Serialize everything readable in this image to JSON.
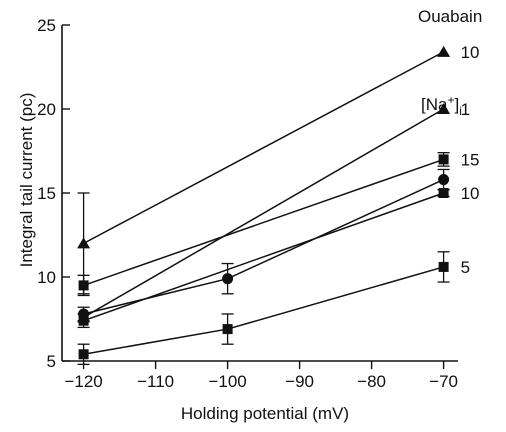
{
  "chart_data": {
    "type": "line",
    "xlabel": "Holding potential (mV)",
    "ylabel": "Integral tail current (pc)",
    "xlim": [
      -123,
      -68
    ],
    "ylim": [
      5,
      25
    ],
    "x_ticks": [
      -120,
      -110,
      -100,
      -90,
      -80,
      -70
    ],
    "y_ticks": [
      5,
      10,
      15,
      20,
      25
    ],
    "group_labels": {
      "ouabain": "Ouabain",
      "na": "[Na",
      "na_sup": "+",
      "na_close": "]",
      "na_sub": "i"
    },
    "series": [
      {
        "name": "10",
        "group": "ouabain",
        "marker": "triangle",
        "x": [
          -120,
          -70
        ],
        "y": [
          12.0,
          23.4
        ],
        "err": [
          3.0,
          0
        ]
      },
      {
        "name": "1",
        "group": "ouabain",
        "marker": "triangle",
        "x": [
          -120,
          -70
        ],
        "y": [
          7.6,
          20.0
        ],
        "err": [
          0,
          0
        ]
      },
      {
        "name": "15",
        "group": "na",
        "marker": "square",
        "x": [
          -120,
          -70
        ],
        "y": [
          9.5,
          17.0
        ],
        "err": [
          0.6,
          0.4
        ]
      },
      {
        "name": "",
        "group": "",
        "marker": "circle",
        "x": [
          -120,
          -100,
          -70
        ],
        "y": [
          7.8,
          9.9,
          15.8
        ],
        "err": [
          0.4,
          0.9,
          0.6
        ]
      },
      {
        "name": "10",
        "group": "na",
        "marker": "square",
        "x": [
          -120,
          -70
        ],
        "y": [
          7.4,
          15.0
        ],
        "err": [
          0.4,
          0.2
        ]
      },
      {
        "name": "5",
        "group": "na",
        "marker": "square",
        "x": [
          -120,
          -100,
          -70
        ],
        "y": [
          5.4,
          6.9,
          10.6
        ],
        "err": [
          0.6,
          0.9,
          0.9
        ]
      }
    ]
  }
}
